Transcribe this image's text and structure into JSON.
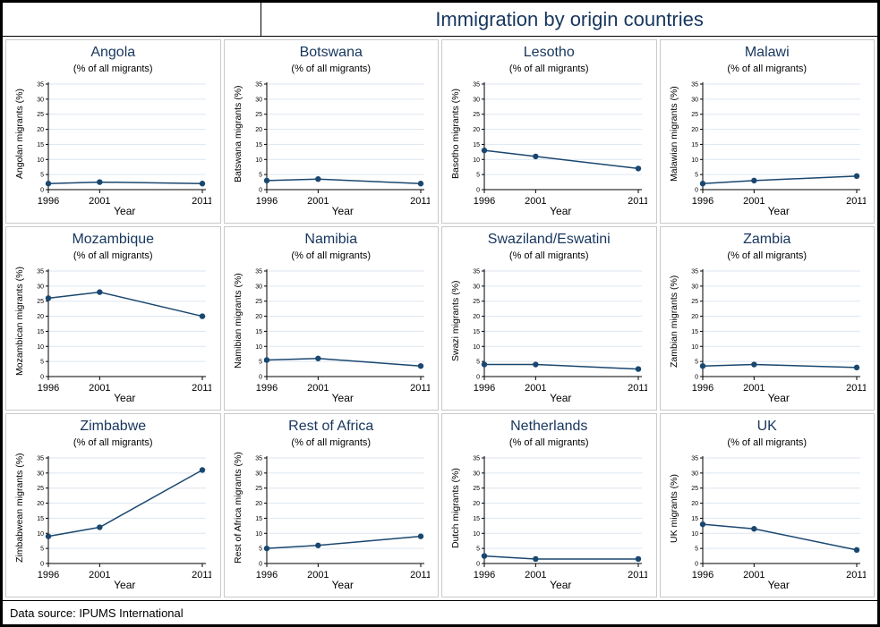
{
  "title": "Immigration by origin countries",
  "footer": "Data source: IPUMS International",
  "colors": {
    "line": "#1a476f",
    "marker": "#1a476f",
    "title": "#17365d",
    "grid": "#dde6f0",
    "axis": "#000000"
  },
  "axis": {
    "subtitle": "(% of all migrants)",
    "xlabel": "Year",
    "x_ticks": [
      "1996",
      "2001",
      "2011"
    ],
    "y_ticks": [
      0,
      5,
      10,
      15,
      20,
      25,
      30,
      35
    ],
    "y_max": 35,
    "grid": "on",
    "legend": "none"
  },
  "chart_data": [
    {
      "type": "line",
      "title": "Angola",
      "ylabel": "Angolan migrants (%)",
      "xlabel": "Year",
      "x": [
        1996,
        2001,
        2011
      ],
      "values": [
        2,
        2.5,
        2
      ],
      "ylim": [
        0,
        35
      ]
    },
    {
      "type": "line",
      "title": "Botswana",
      "ylabel": "Batswana migrants (%)",
      "xlabel": "Year",
      "x": [
        1996,
        2001,
        2011
      ],
      "values": [
        3,
        3.5,
        2
      ],
      "ylim": [
        0,
        35
      ]
    },
    {
      "type": "line",
      "title": "Lesotho",
      "ylabel": "Basotho migrants (%)",
      "xlabel": "Year",
      "x": [
        1996,
        2001,
        2011
      ],
      "values": [
        13,
        11,
        7
      ],
      "ylim": [
        0,
        35
      ]
    },
    {
      "type": "line",
      "title": "Malawi",
      "ylabel": "Malawian migrants (%)",
      "xlabel": "Year",
      "x": [
        1996,
        2001,
        2011
      ],
      "values": [
        2,
        3,
        4.5
      ],
      "ylim": [
        0,
        35
      ]
    },
    {
      "type": "line",
      "title": "Mozambique",
      "ylabel": "Mozambican migrants (%)",
      "xlabel": "Year",
      "x": [
        1996,
        2001,
        2011
      ],
      "values": [
        26,
        28,
        20
      ],
      "ylim": [
        0,
        35
      ]
    },
    {
      "type": "line",
      "title": "Namibia",
      "ylabel": "Namibian migrants (%)",
      "xlabel": "Year",
      "x": [
        1996,
        2001,
        2011
      ],
      "values": [
        5.5,
        6,
        3.5
      ],
      "ylim": [
        0,
        35
      ]
    },
    {
      "type": "line",
      "title": "Swaziland/Eswatini",
      "ylabel": "Swazi migrants (%)",
      "xlabel": "Year",
      "x": [
        1996,
        2001,
        2011
      ],
      "values": [
        4,
        4,
        2.5
      ],
      "ylim": [
        0,
        35
      ]
    },
    {
      "type": "line",
      "title": "Zambia",
      "ylabel": "Zambian migrants (%)",
      "xlabel": "Year",
      "x": [
        1996,
        2001,
        2011
      ],
      "values": [
        3.5,
        4,
        3
      ],
      "ylim": [
        0,
        35
      ]
    },
    {
      "type": "line",
      "title": "Zimbabwe",
      "ylabel": "Zimbabwean migrants (%)",
      "xlabel": "Year",
      "x": [
        1996,
        2001,
        2011
      ],
      "values": [
        9,
        12,
        31
      ],
      "ylim": [
        0,
        35
      ]
    },
    {
      "type": "line",
      "title": "Rest of Africa",
      "ylabel": "Rest of Africa migrants (%)",
      "xlabel": "Year",
      "x": [
        1996,
        2001,
        2011
      ],
      "values": [
        5,
        6,
        9
      ],
      "ylim": [
        0,
        35
      ]
    },
    {
      "type": "line",
      "title": "Netherlands",
      "ylabel": "Dutch migrants (%)",
      "xlabel": "Year",
      "x": [
        1996,
        2001,
        2011
      ],
      "values": [
        2.5,
        1.5,
        1.5
      ],
      "ylim": [
        0,
        35
      ]
    },
    {
      "type": "line",
      "title": "UK",
      "ylabel": "UK migrants (%)",
      "xlabel": "Year",
      "x": [
        1996,
        2001,
        2011
      ],
      "values": [
        13,
        11.5,
        4.5
      ],
      "ylim": [
        0,
        35
      ]
    }
  ]
}
